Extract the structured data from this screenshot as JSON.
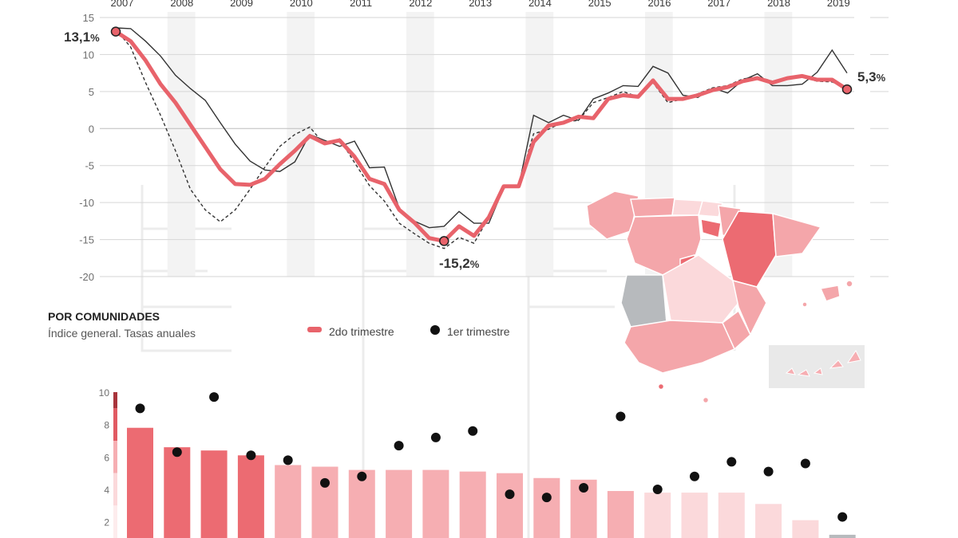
{
  "colors": {
    "series_2q": "#e8636b",
    "series_ref": "#333333",
    "bar_strong": "#ec6b72",
    "bar_medium": "#f6aeb2",
    "bar_light": "#fbd9db",
    "dot": "#111111",
    "grid": "#d6d6d6",
    "band": "#f3f3f3",
    "map_grey": "#b7babd"
  },
  "legend": {
    "item_2q": "2do trimestre",
    "item_1q": "1er trimestre"
  },
  "section": {
    "title": "POR COMUNIDADES",
    "subtitle": "Índice general. Tasas anuales"
  },
  "callouts": {
    "start_value": "13,1",
    "min_value": "-15,2",
    "end_value": "5,3",
    "pct": "%"
  },
  "chart_data": [
    {
      "type": "line",
      "x_tick_labels": [
        "2007",
        "2008",
        "2009",
        "2010",
        "2011",
        "2012",
        "2013",
        "2014",
        "2015",
        "2016",
        "2017",
        "2018",
        "2019"
      ],
      "y_tick_labels": [
        "15",
        "10",
        "5",
        "0",
        "-5",
        "-10",
        "-15",
        "-20"
      ],
      "ylim": [
        -20,
        15
      ],
      "grid": "horizontal",
      "legend_position": "bottom",
      "x": [
        2007.0,
        2007.25,
        2007.5,
        2007.75,
        2008.0,
        2008.25,
        2008.5,
        2008.75,
        2009.0,
        2009.25,
        2009.5,
        2009.75,
        2010.0,
        2010.25,
        2010.5,
        2010.75,
        2011.0,
        2011.25,
        2011.5,
        2011.75,
        2012.0,
        2012.25,
        2012.5,
        2012.75,
        2013.0,
        2013.25,
        2013.5,
        2013.75,
        2014.0,
        2014.25,
        2014.5,
        2014.75,
        2015.0,
        2015.25,
        2015.5,
        2015.75,
        2016.0,
        2016.25,
        2016.5,
        2016.75,
        2017.0,
        2017.25,
        2017.5,
        2017.75,
        2018.0,
        2018.25,
        2018.5,
        2018.75,
        2019.0,
        2019.25
      ],
      "series": [
        {
          "name": "2do trimestre",
          "values": [
            13.1,
            11.8,
            9.2,
            6.0,
            3.5,
            0.5,
            -2.5,
            -5.5,
            -7.5,
            -7.6,
            -6.8,
            -4.8,
            -3.0,
            -1.0,
            -2.0,
            -1.6,
            -3.8,
            -6.8,
            -7.5,
            -11.0,
            -12.7,
            -14.8,
            -15.2,
            -13.2,
            -14.5,
            -12.0,
            -7.8,
            -7.8,
            -1.8,
            0.4,
            0.8,
            1.6,
            1.4,
            4.0,
            4.5,
            4.3,
            6.5,
            4.0,
            4.0,
            4.5,
            5.2,
            5.6,
            6.4,
            6.8,
            6.2,
            6.8,
            7.1,
            6.6,
            6.6,
            5.3
          ]
        },
        {
          "name": "",
          "values": [
            13.6,
            13.5,
            11.8,
            9.8,
            7.2,
            5.4,
            3.8,
            0.8,
            -2.1,
            -4.4,
            -5.6,
            -5.8,
            -4.5,
            -0.8,
            -1.6,
            -2.4,
            -1.7,
            -5.3,
            -5.2,
            -10.8,
            -12.5,
            -13.4,
            -13.2,
            -11.2,
            -12.8,
            -12.8,
            -8.0,
            -7.8,
            1.8,
            0.8,
            1.8,
            1.1,
            4.0,
            4.8,
            5.8,
            5.7,
            8.4,
            7.5,
            4.5,
            4.2,
            5.5,
            4.8,
            6.5,
            7.4,
            5.8,
            5.8,
            6.0,
            7.6,
            10.6,
            7.5
          ]
        },
        {
          "name": "",
          "values": [
            13.4,
            11.0,
            6.2,
            1.8,
            -3.0,
            -8.2,
            -11.0,
            -12.6,
            -11.0,
            -8.2,
            -5.2,
            -2.4,
            -0.8,
            0.2,
            -2.2,
            -1.4,
            -4.6,
            -7.7,
            -9.8,
            -12.8,
            -14.2,
            -15.5,
            -16.2,
            -14.7,
            -15.5,
            -12.0,
            -7.8,
            -7.7,
            -0.7,
            -0.1,
            0.9,
            1.1,
            3.5,
            4.2,
            5.0,
            4.3,
            6.2,
            3.5,
            4.0,
            4.7,
            5.5,
            5.8,
            6.7,
            7.0,
            6.4,
            6.9,
            7.0,
            6.4,
            6.3,
            5.5
          ]
        }
      ]
    },
    {
      "type": "bar",
      "y_tick_labels": [
        "10",
        "8",
        "6",
        "4",
        "2"
      ],
      "ylim": [
        1.0,
        10.0
      ],
      "series": [
        {
          "name": "2do trimestre",
          "values": [
            7.8,
            6.6,
            6.4,
            6.1,
            5.5,
            5.4,
            5.2,
            5.2,
            5.2,
            5.1,
            5.0,
            4.7,
            4.6,
            3.9,
            3.8,
            3.8,
            3.8,
            3.1,
            2.1,
            1.2
          ]
        },
        {
          "name": "1er trimestre",
          "values": [
            9.0,
            6.3,
            9.7,
            6.1,
            5.8,
            4.4,
            4.8,
            6.7,
            7.2,
            7.6,
            3.7,
            3.5,
            4.1,
            8.5,
            4.0,
            4.8,
            5.7,
            5.1,
            5.6,
            2.3
          ]
        }
      ],
      "bar_tone": [
        "strong",
        "strong",
        "strong",
        "strong",
        "medium",
        "medium",
        "medium",
        "medium",
        "medium",
        "medium",
        "medium",
        "medium",
        "medium",
        "medium",
        "light",
        "light",
        "light",
        "light",
        "light",
        "grey"
      ],
      "legend_position": "above"
    }
  ]
}
